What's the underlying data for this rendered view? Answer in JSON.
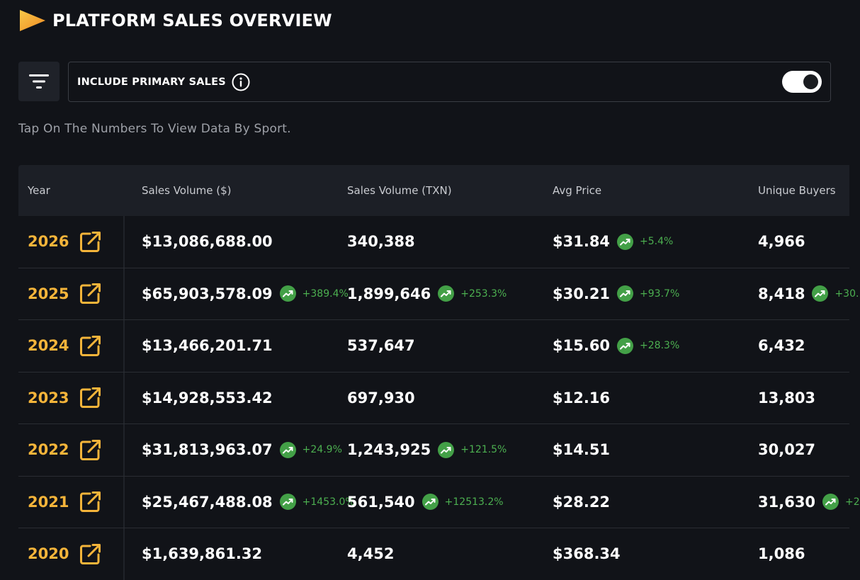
{
  "header": {
    "title": "PLATFORM SALES OVERVIEW"
  },
  "filter": {
    "toggle_label": "INCLUDE PRIMARY SALES",
    "toggle_on": true
  },
  "hint": "Tap On The Numbers To View Data By Sport.",
  "colors": {
    "accent": "#f4b43a",
    "positive": "#43a047",
    "background": "#111318"
  },
  "table": {
    "columns": [
      "Year",
      "Sales Volume ($)",
      "Sales Volume (TXN)",
      "Avg Price",
      "Unique Buyers"
    ],
    "rows": [
      {
        "year": "2026",
        "sales_usd": "$13,086,688.00",
        "sales_usd_pct": "",
        "sales_txn": "340,388",
        "sales_txn_pct": "",
        "avg_price": "$31.84",
        "avg_price_pct": "+5.4%",
        "buyers": "4,966",
        "buyers_pct": ""
      },
      {
        "year": "2025",
        "sales_usd": "$65,903,578.09",
        "sales_usd_pct": "+389.4%",
        "sales_txn": "1,899,646",
        "sales_txn_pct": "+253.3%",
        "avg_price": "$30.21",
        "avg_price_pct": "+93.7%",
        "buyers": "8,418",
        "buyers_pct": "+30."
      },
      {
        "year": "2024",
        "sales_usd": "$13,466,201.71",
        "sales_usd_pct": "",
        "sales_txn": "537,647",
        "sales_txn_pct": "",
        "avg_price": "$15.60",
        "avg_price_pct": "+28.3%",
        "buyers": "6,432",
        "buyers_pct": ""
      },
      {
        "year": "2023",
        "sales_usd": "$14,928,553.42",
        "sales_usd_pct": "",
        "sales_txn": "697,930",
        "sales_txn_pct": "",
        "avg_price": "$12.16",
        "avg_price_pct": "",
        "buyers": "13,803",
        "buyers_pct": ""
      },
      {
        "year": "2022",
        "sales_usd": "$31,813,963.07",
        "sales_usd_pct": "+24.9%",
        "sales_txn": "1,243,925",
        "sales_txn_pct": "+121.5%",
        "avg_price": "$14.51",
        "avg_price_pct": "",
        "buyers": "30,027",
        "buyers_pct": ""
      },
      {
        "year": "2021",
        "sales_usd": "$25,467,488.08",
        "sales_usd_pct": "+1453.0%",
        "sales_txn": "561,540",
        "sales_txn_pct": "+12513.2%",
        "avg_price": "$28.22",
        "avg_price_pct": "",
        "buyers": "31,630",
        "buyers_pct": "+2"
      },
      {
        "year": "2020",
        "sales_usd": "$1,639,861.32",
        "sales_usd_pct": "",
        "sales_txn": "4,452",
        "sales_txn_pct": "",
        "avg_price": "$368.34",
        "avg_price_pct": "",
        "buyers": "1,086",
        "buyers_pct": ""
      }
    ]
  }
}
